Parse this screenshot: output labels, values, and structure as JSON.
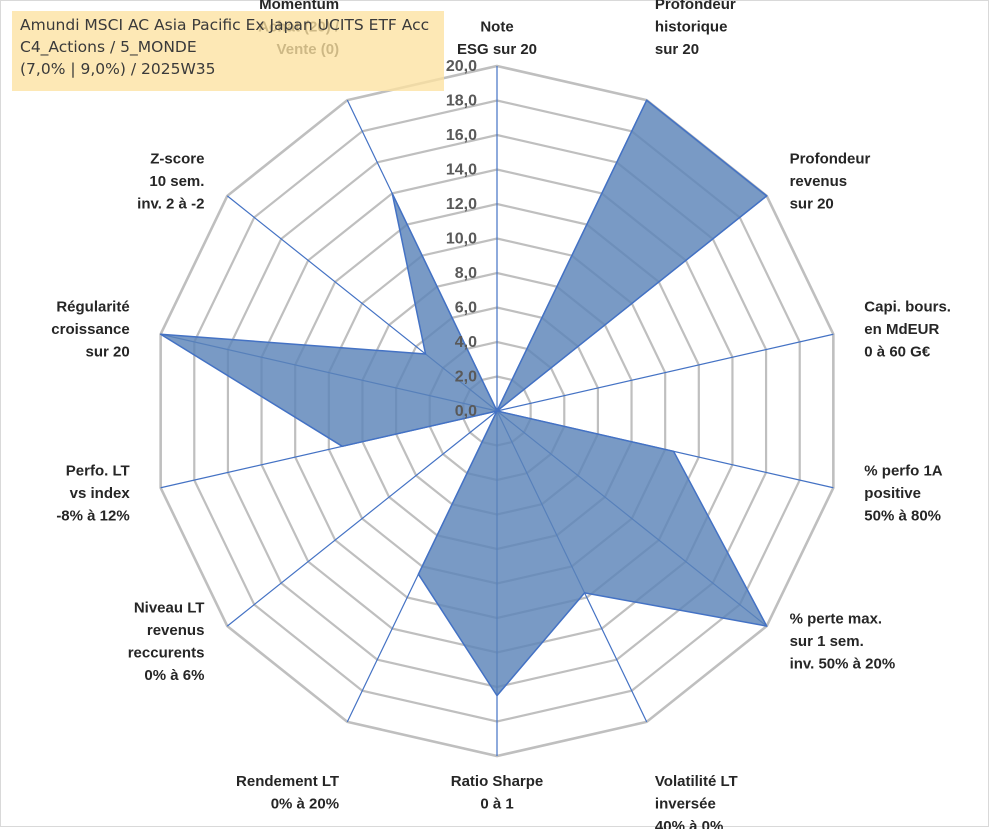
{
  "title": {
    "line1": "Amundi MSCI AC Asia Pacific Ex Japan UCITS ETF Acc",
    "line2": "C4_Actions / 5_MONDE",
    "line3": "(7,0% | 9,0%) / 2025W35"
  },
  "colors": {
    "fill": "#5b84b8",
    "stroke": "#4472c4",
    "grid": "#bfbfbf",
    "spoke": "#4472c4",
    "title_bg": "#fde2a0"
  },
  "chart_data": {
    "type": "radar",
    "rlim": [
      0,
      20
    ],
    "tick_labels": [
      "0,0",
      "2,0",
      "4,0",
      "6,0",
      "8,0",
      "10,0",
      "12,0",
      "14,0",
      "16,0",
      "18,0",
      "20,0"
    ],
    "grid": true,
    "categories": [
      [
        "Note",
        "ESG sur 20"
      ],
      [
        "Profondeur",
        "historique",
        "sur 20"
      ],
      [
        "Profondeur",
        "revenus",
        "sur 20"
      ],
      [
        "Capi. bours.",
        "en MdEUR",
        "0 à 60 G€"
      ],
      [
        "% perfo 1A",
        "positive",
        "50% à 80%"
      ],
      [
        "% perte max.",
        "sur 1 sem.",
        "inv. 50% à 20%"
      ],
      [
        "Volatilité LT",
        "inversée",
        "40% à 0%"
      ],
      [
        "Ratio Sharpe",
        "0 à 1"
      ],
      [
        "Rendement LT",
        "0% à 20%"
      ],
      [
        "Niveau LT",
        "revenus",
        "reccurents",
        "0% à 6%"
      ],
      [
        "Perfo. LT",
        "vs index",
        "-8% à 12%"
      ],
      [
        "Régularité",
        "croissance",
        "sur 20"
      ],
      [
        "Z-score",
        "10 sem.",
        "inv. 2 à -2"
      ],
      [
        "Momentum",
        "Achat (20) /",
        "Vente (0)"
      ]
    ],
    "values": [
      0,
      20,
      20,
      0,
      10.5,
      20,
      11.7,
      16.5,
      10.5,
      0,
      9.2,
      20,
      5.3,
      14
    ]
  }
}
